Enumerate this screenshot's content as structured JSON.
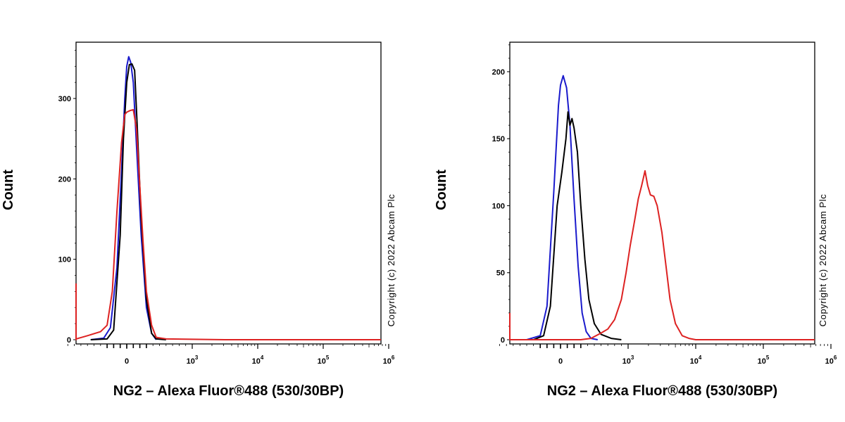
{
  "chart_data": [
    {
      "type": "line",
      "xlabel": "NG2 – Alexa Fluor®488 (530/30BP)",
      "ylabel": "Count",
      "copyright": "Copyright (c) 2022 Abcam Plc",
      "x_scale": "biexponential",
      "x_tick_labels": [
        "0",
        "10^3",
        "10^4",
        "10^5",
        "10^6"
      ],
      "y_ticks": [
        0,
        100,
        200,
        300
      ],
      "ylim": [
        0,
        370
      ],
      "series": [
        {
          "color": "#1a1acc",
          "values": [
            [
              -0.55,
              0
            ],
            [
              -0.35,
              2
            ],
            [
              -0.25,
              15
            ],
            [
              -0.15,
              90
            ],
            [
              -0.08,
              210
            ],
            [
              -0.03,
              300
            ],
            [
              0.0,
              340
            ],
            [
              0.03,
              352
            ],
            [
              0.06,
              345
            ],
            [
              0.1,
              320
            ],
            [
              0.15,
              240
            ],
            [
              0.22,
              130
            ],
            [
              0.3,
              40
            ],
            [
              0.38,
              8
            ],
            [
              0.45,
              0
            ]
          ]
        },
        {
          "color": "#000000",
          "values": [
            [
              -0.55,
              0
            ],
            [
              -0.3,
              1
            ],
            [
              -0.2,
              12
            ],
            [
              -0.1,
              130
            ],
            [
              -0.05,
              250
            ],
            [
              0.0,
              320
            ],
            [
              0.04,
              342
            ],
            [
              0.08,
              343
            ],
            [
              0.12,
              335
            ],
            [
              0.16,
              265
            ],
            [
              0.22,
              150
            ],
            [
              0.3,
              50
            ],
            [
              0.38,
              8
            ],
            [
              0.45,
              1
            ],
            [
              0.6,
              0
            ]
          ]
        },
        {
          "color": "#dd2222",
          "values": [
            [
              -1.0,
              70
            ],
            [
              -0.98,
              25
            ],
            [
              -0.95,
              3
            ],
            [
              -0.9,
              0
            ],
            [
              -0.8,
              1
            ],
            [
              -0.6,
              5
            ],
            [
              -0.4,
              10
            ],
            [
              -0.3,
              18
            ],
            [
              -0.22,
              60
            ],
            [
              -0.15,
              160
            ],
            [
              -0.08,
              245
            ],
            [
              -0.03,
              280
            ],
            [
              0.0,
              283
            ],
            [
              0.05,
              285
            ],
            [
              0.1,
              286
            ],
            [
              0.15,
              262
            ],
            [
              0.2,
              190
            ],
            [
              0.25,
              120
            ],
            [
              0.3,
              60
            ],
            [
              0.38,
              18
            ],
            [
              0.45,
              3
            ],
            [
              0.6,
              1
            ],
            [
              1.5,
              0
            ],
            [
              3.0,
              0
            ],
            [
              4.0,
              0
            ]
          ]
        }
      ]
    },
    {
      "type": "line",
      "xlabel": "NG2 – Alexa Fluor®488 (530/30BP)",
      "ylabel": "Count",
      "copyright": "Copyright (c) 2022 Abcam Plc",
      "x_scale": "biexponential",
      "x_tick_labels": [
        "0",
        "10^3",
        "10^4",
        "10^5",
        "10^6"
      ],
      "y_ticks": [
        0,
        50,
        100,
        150,
        200
      ],
      "ylim": [
        0,
        222
      ],
      "series": [
        {
          "color": "#1a1acc",
          "values": [
            [
              -0.5,
              0
            ],
            [
              -0.3,
              3
            ],
            [
              -0.2,
              25
            ],
            [
              -0.1,
              110
            ],
            [
              -0.03,
              175
            ],
            [
              0.0,
              190
            ],
            [
              0.04,
              197
            ],
            [
              0.09,
              188
            ],
            [
              0.14,
              160
            ],
            [
              0.2,
              105
            ],
            [
              0.26,
              55
            ],
            [
              0.32,
              20
            ],
            [
              0.38,
              6
            ],
            [
              0.45,
              1
            ],
            [
              0.55,
              0
            ]
          ]
        },
        {
          "color": "#000000",
          "values": [
            [
              -0.4,
              0
            ],
            [
              -0.25,
              3
            ],
            [
              -0.15,
              25
            ],
            [
              -0.05,
              100
            ],
            [
              0.02,
              125
            ],
            [
              0.08,
              150
            ],
            [
              0.11,
              170
            ],
            [
              0.14,
              160
            ],
            [
              0.17,
              165
            ],
            [
              0.2,
              158
            ],
            [
              0.25,
              140
            ],
            [
              0.3,
              100
            ],
            [
              0.36,
              60
            ],
            [
              0.42,
              30
            ],
            [
              0.5,
              12
            ],
            [
              0.6,
              4
            ],
            [
              0.75,
              1
            ],
            [
              0.9,
              0
            ]
          ]
        },
        {
          "color": "#dd2222",
          "values": [
            [
              -1.0,
              20
            ],
            [
              -0.98,
              6
            ],
            [
              -0.95,
              0
            ],
            [
              0.3,
              0
            ],
            [
              0.45,
              1
            ],
            [
              0.6,
              5
            ],
            [
              0.7,
              8
            ],
            [
              0.8,
              15
            ],
            [
              0.9,
              30
            ],
            [
              0.97,
              50
            ],
            [
              1.03,
              70
            ],
            [
              1.1,
              90
            ],
            [
              1.15,
              105
            ],
            [
              1.2,
              115
            ],
            [
              1.25,
              126
            ],
            [
              1.29,
              115
            ],
            [
              1.33,
              108
            ],
            [
              1.38,
              107
            ],
            [
              1.43,
              100
            ],
            [
              1.5,
              80
            ],
            [
              1.56,
              55
            ],
            [
              1.62,
              30
            ],
            [
              1.7,
              12
            ],
            [
              1.8,
              3
            ],
            [
              1.9,
              1
            ],
            [
              2.0,
              0
            ],
            [
              4.0,
              0
            ]
          ]
        }
      ]
    }
  ]
}
